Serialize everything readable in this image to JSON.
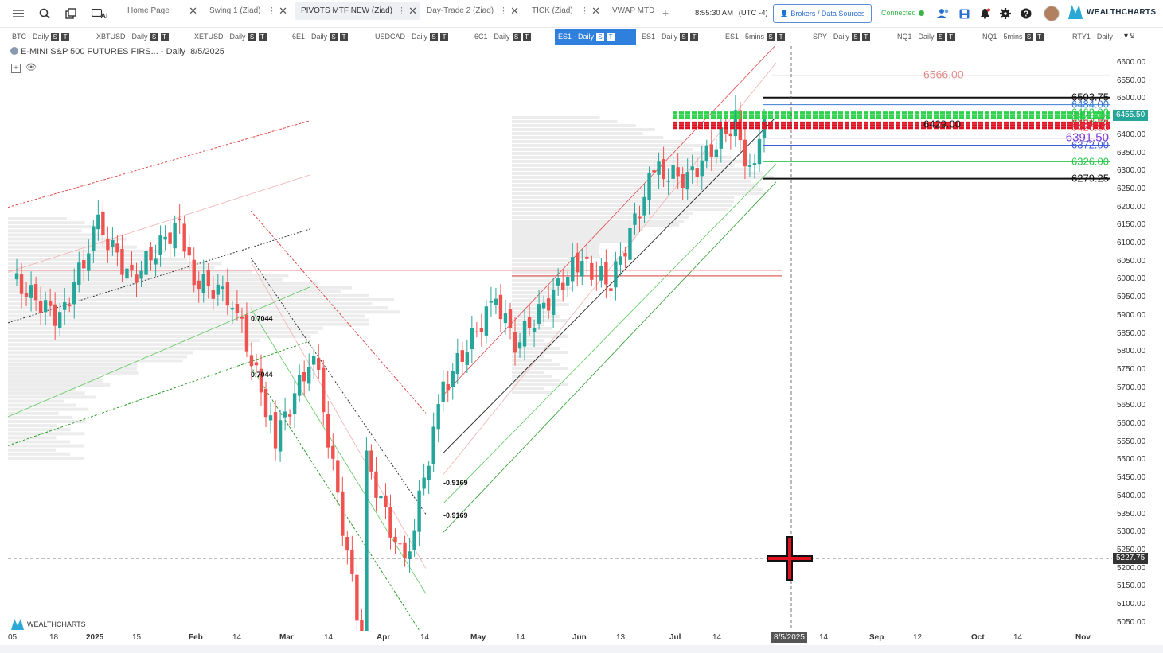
{
  "toolbar": {
    "tabs": [
      {
        "label": "Home Page",
        "active": false
      },
      {
        "label": "Swing 1 (Ziad)",
        "active": false
      },
      {
        "label": "PIVOTS MTF NEW (Ziad)",
        "active": true
      },
      {
        "label": "Day-Trade 2 (Ziad)",
        "active": false
      },
      {
        "label": "TICK (Ziad)",
        "active": false
      },
      {
        "label": "VWAP MTD",
        "active": false
      }
    ],
    "time": "8:55:30 AM",
    "timezone": "(UTC -4)",
    "brokers_label": "Brokers / Data Sources",
    "status": "Connected",
    "brand": "WEALTHCHARTS",
    "ai_label": "AI"
  },
  "symbol_tabs": [
    {
      "label": "BTC - Daily",
      "active": false
    },
    {
      "label": "XBTUSD - Daily",
      "active": false
    },
    {
      "label": "XETUSD - Daily",
      "active": false
    },
    {
      "label": "6E1 - Daily",
      "active": false
    },
    {
      "label": "USDCAD - Daily",
      "active": false
    },
    {
      "label": "6C1 - Daily",
      "active": false
    },
    {
      "label": "ES1 - Daily",
      "active": true
    },
    {
      "label": "ES1 - Daily",
      "active": false
    },
    {
      "label": "ES1 - 5mins",
      "active": false
    },
    {
      "label": "SPY - Daily",
      "active": false
    },
    {
      "label": "NQ1 - Daily",
      "active": false
    },
    {
      "label": "NQ1 - 5mins",
      "active": false
    },
    {
      "label": "RTY1 - Daily",
      "active": false
    }
  ],
  "symbol_badges": {
    "s": "S",
    "t": "T"
  },
  "symbol_overflow": "▾ 9",
  "chart_header": {
    "instrument": "E-MINI S&P 500 FUTURES FIRS...",
    "interval": "- Daily",
    "date": "8/5/2025"
  },
  "watermark": "WEALTHCHARTS",
  "chart_data": {
    "type": "candlestick",
    "ylim": [
      5020,
      6640
    ],
    "y_ticks": [
      "6600.00",
      "6550.00",
      "6500.00",
      "6450.00",
      "6400.00",
      "6350.00",
      "6300.00",
      "6250.00",
      "6200.00",
      "6150.00",
      "6100.00",
      "6050.00",
      "6000.00",
      "5950.00",
      "5900.00",
      "5850.00",
      "5800.00",
      "5750.00",
      "5700.00",
      "5650.00",
      "5600.00",
      "5550.00",
      "5500.00",
      "5450.00",
      "5400.00",
      "5350.00",
      "5300.00",
      "5250.00",
      "5200.00",
      "5150.00",
      "5100.00",
      "5050.00"
    ],
    "x_ticks": [
      "05",
      "18",
      "2025",
      "15",
      "Feb",
      "14",
      "Mar",
      "14",
      "Apr",
      "14",
      "May",
      "14",
      "Jun",
      "13",
      "Jul",
      "14",
      "8/5/2025",
      "14",
      "Sep",
      "12",
      "Oct",
      "14",
      "Nov"
    ],
    "bold_x_ticks": [
      "2025",
      "Feb",
      "Mar",
      "Apr",
      "May",
      "Jun",
      "Jul",
      "Sep",
      "Oct",
      "Nov"
    ],
    "crosshair_x_label": "8/5/2025",
    "last_price": "6455.50",
    "crosshair_price": "5227.75",
    "colors": {
      "up": "#26a69a",
      "down": "#ef5350",
      "last_price_tag": "#26a69a",
      "crosshair_tag": "#333333"
    },
    "candle_anchors": [
      {
        "date": "Dec 30",
        "close": 6000
      },
      {
        "date": "Jan 13",
        "close": 5890
      },
      {
        "date": "Jan 24",
        "close": 6150
      },
      {
        "date": "Feb 3",
        "close": 6000
      },
      {
        "date": "Feb 18",
        "close": 6160
      },
      {
        "date": "Feb 21",
        "close": 6000
      },
      {
        "date": "Mar 3",
        "close": 5950
      },
      {
        "date": "Mar 13",
        "close": 5560
      },
      {
        "date": "Mar 25",
        "close": 5800
      },
      {
        "date": "Apr 8",
        "close": 5000
      },
      {
        "date": "Apr 9",
        "close": 5500
      },
      {
        "date": "Apr 21",
        "close": 5200
      },
      {
        "date": "May 2",
        "close": 5700
      },
      {
        "date": "May 19",
        "close": 5950
      },
      {
        "date": "May 23",
        "close": 5820
      },
      {
        "date": "Jun 11",
        "close": 6050
      },
      {
        "date": "Jun 20",
        "close": 5990
      },
      {
        "date": "Jul 3",
        "close": 6300
      },
      {
        "date": "Jul 14",
        "close": 6280
      },
      {
        "date": "Jul 28",
        "close": 6440
      },
      {
        "date": "Aug 1",
        "close": 6290
      },
      {
        "date": "Aug 5",
        "close": 6455
      }
    ],
    "fib_labels": [
      "0.7044",
      "0.7044",
      "-0.9169",
      "-0.9169"
    ],
    "pivot_levels": [
      {
        "label": "6566.00",
        "price": 6566,
        "color": "#e58c8c"
      },
      {
        "label": "6503.75",
        "price": 6503.75,
        "color": "#111111"
      },
      {
        "label": "6484.00",
        "price": 6484,
        "color": "#3a7bd5"
      },
      {
        "label": "6462.00",
        "price": 6462,
        "color": "#2bc44a"
      },
      {
        "label": "6445.00",
        "price": 6445,
        "color": "#2bc44a"
      },
      {
        "label": "6429.00",
        "price": 6429,
        "color": "#111111"
      },
      {
        "label": "6431.50",
        "price": 6431.5,
        "color": "#e0263a"
      },
      {
        "label": "6420.50",
        "price": 6420.5,
        "color": "#e0263a"
      },
      {
        "label": "6391.50",
        "price": 6391.5,
        "color": "#7a3ad6"
      },
      {
        "label": "6372.00",
        "price": 6372,
        "color": "#3a5ad6"
      },
      {
        "label": "6326.00",
        "price": 6326,
        "color": "#2bc44a"
      },
      {
        "label": "6279.25",
        "price": 6279.25,
        "color": "#111111"
      }
    ]
  }
}
